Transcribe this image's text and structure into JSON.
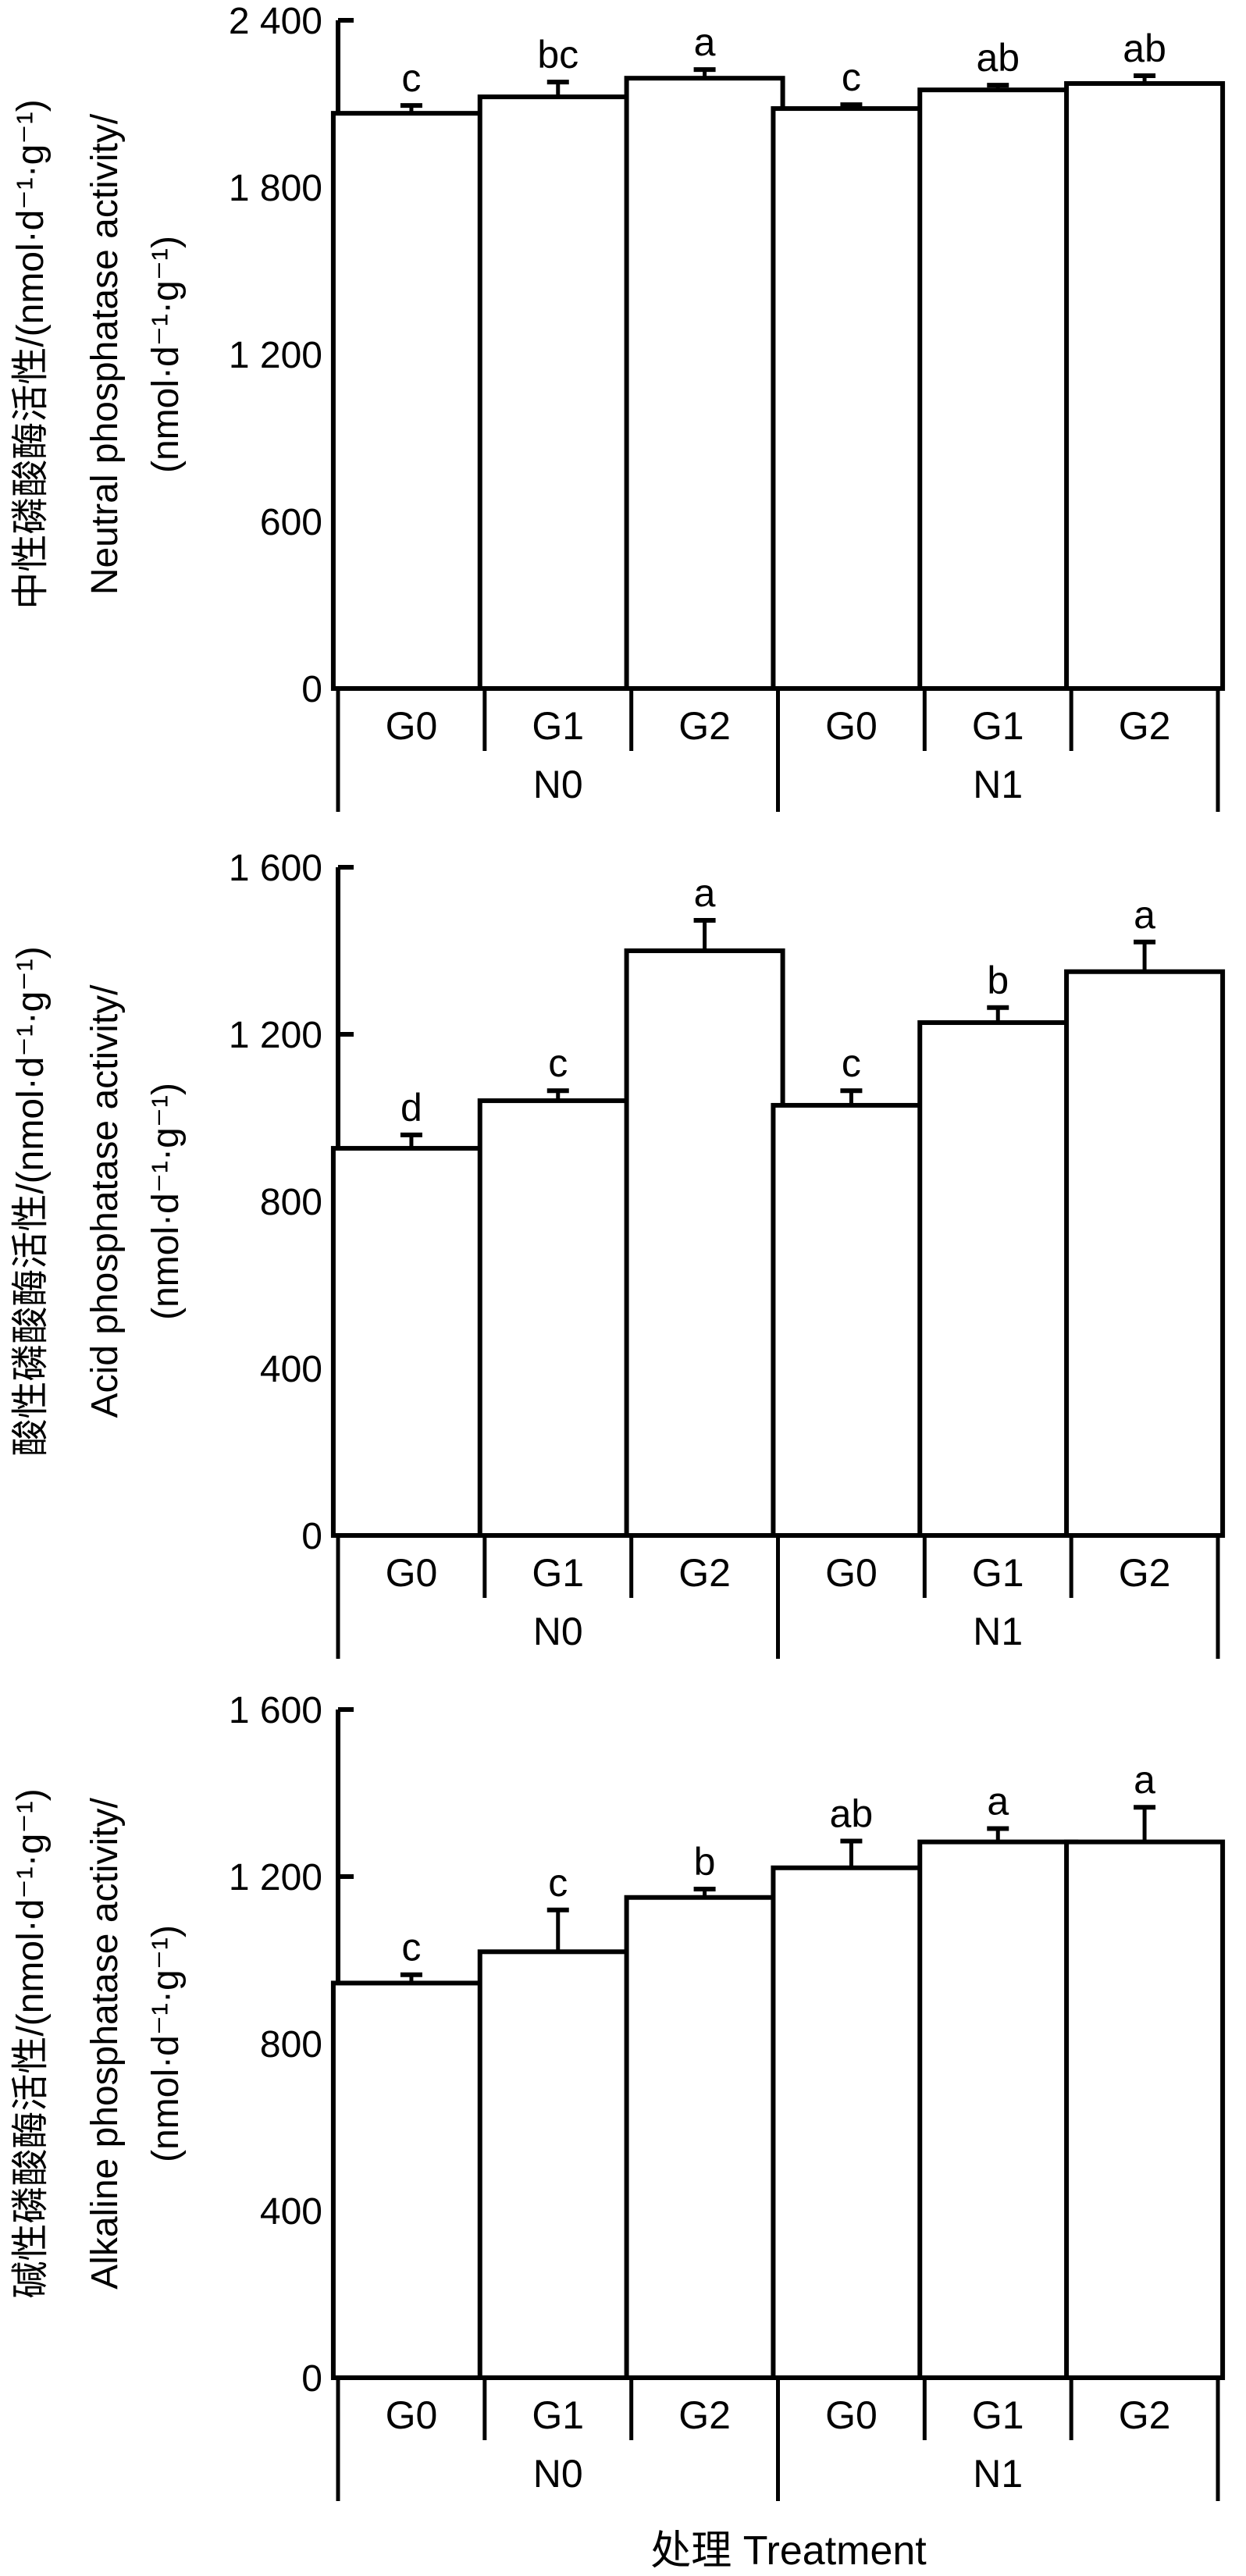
{
  "figure": {
    "x_axis_title": "处理 Treatment",
    "stroke_color": "#000000",
    "bar_fill": "#ffffff"
  },
  "chart_data": [
    {
      "type": "bar",
      "title": "",
      "ylabel_lines": [
        "中性磷酸酶活性/(nmol·d⁻¹·g⁻¹)",
        "Neutral phosphatase activity/",
        "(nmol·d⁻¹·g⁻¹)"
      ],
      "xlabel": "",
      "ylim": [
        0,
        2400
      ],
      "yticks": [
        0,
        600,
        1200,
        1800,
        2400
      ],
      "ytick_labels": [
        "0",
        "600",
        "1 200",
        "1 800",
        "2 400"
      ],
      "groups": [
        "N0",
        "N1"
      ],
      "categories": [
        "G0",
        "G1",
        "G2",
        "G0",
        "G1",
        "G2"
      ],
      "values": [
        2066,
        2125,
        2192,
        2083,
        2150,
        2173
      ],
      "errors": [
        28,
        53,
        31,
        14,
        17,
        28
      ],
      "significance": [
        "c",
        "bc",
        "a",
        "c",
        "ab",
        "ab"
      ],
      "grid": false
    },
    {
      "type": "bar",
      "title": "",
      "ylabel_lines": [
        "酸性磷酸酶活性/(nmol·d⁻¹·g⁻¹)",
        "Acid phosphatase activity/",
        "(nmol·d⁻¹·g⁻¹)"
      ],
      "xlabel": "",
      "ylim": [
        0,
        1600
      ],
      "yticks": [
        0,
        400,
        800,
        1200,
        1600
      ],
      "ytick_labels": [
        "0",
        "400",
        "800",
        "1 200",
        "1 600"
      ],
      "groups": [
        "N0",
        "N1"
      ],
      "categories": [
        "G0",
        "G1",
        "G2",
        "G0",
        "G1",
        "G2"
      ],
      "values": [
        927,
        1041,
        1400,
        1030,
        1228,
        1350
      ],
      "errors": [
        32,
        24,
        73,
        35,
        36,
        71
      ],
      "significance": [
        "d",
        "c",
        "a",
        "c",
        "b",
        "a"
      ],
      "grid": false
    },
    {
      "type": "bar",
      "title": "",
      "ylabel_lines": [
        "碱性磷酸酶活性/(nmol·d⁻¹·g⁻¹)",
        "Alkaline phosphatase activity/",
        "(nmol·d⁻¹·g⁻¹)"
      ],
      "xlabel": "",
      "ylim": [
        0,
        1600
      ],
      "yticks": [
        0,
        400,
        800,
        1200,
        1600
      ],
      "ytick_labels": [
        "0",
        "400",
        "800",
        "1 200",
        "1 600"
      ],
      "groups": [
        "N0",
        "N1"
      ],
      "categories": [
        "G0",
        "G1",
        "G2",
        "G0",
        "G1",
        "G2"
      ],
      "values": [
        945,
        1020,
        1150,
        1221,
        1283,
        1283
      ],
      "errors": [
        20,
        100,
        20,
        64,
        32,
        83
      ],
      "significance": [
        "c",
        "c",
        "b",
        "ab",
        "a",
        "a"
      ],
      "grid": false
    }
  ]
}
